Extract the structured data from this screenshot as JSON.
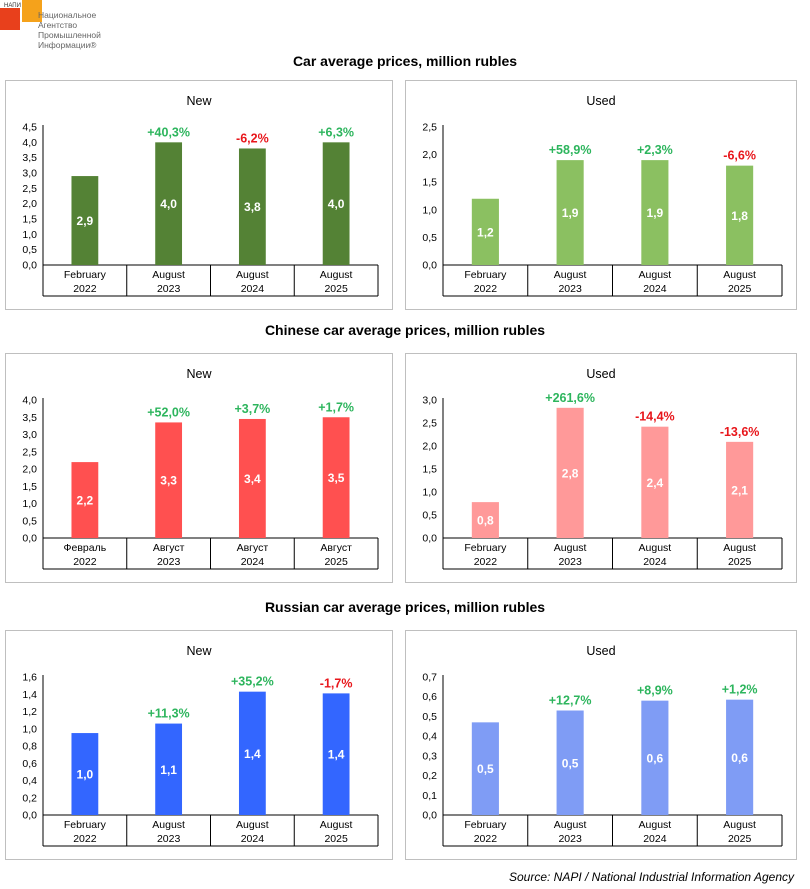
{
  "logo": {
    "abbr": "НАПИ",
    "name_lines": [
      "Национальное",
      "Агентство",
      "Промышленной",
      "Информации®"
    ]
  },
  "sections": [
    {
      "title": "Car average prices, million rubles"
    },
    {
      "title": "Chinese car average prices, million rubles"
    },
    {
      "title": "Russian car average prices, million rubles"
    }
  ],
  "source": "Source: NAPI / National Industrial Information Agency",
  "colors": {
    "positive": "#2db55d",
    "negative": "#e8161b",
    "dark_green": "#548235",
    "light_green": "#8bc061",
    "red": "#ff5050",
    "pink": "#ff9999",
    "blue": "#3366ff",
    "light_blue": "#7f9cf5"
  },
  "chart_data": [
    {
      "type": "bar",
      "title": "New",
      "categories": [
        [
          "February",
          "2022"
        ],
        [
          "August",
          "2023"
        ],
        [
          "August",
          "2024"
        ],
        [
          "August",
          "2025"
        ]
      ],
      "values": [
        2.9,
        4.0,
        3.8,
        4.0
      ],
      "labels": [
        "2,9",
        "4,0",
        "3,8",
        "4,0"
      ],
      "changes": [
        "",
        "+40,3%",
        "-6,2%",
        "+6,3%"
      ],
      "ylim": [
        0,
        4.5
      ],
      "yticks": [
        "0,0",
        "0,5",
        "1,0",
        "1,5",
        "2,0",
        "2,5",
        "3,0",
        "3,5",
        "4,0",
        "4,5"
      ],
      "color": "#548235"
    },
    {
      "type": "bar",
      "title": "Used",
      "categories": [
        [
          "February",
          "2022"
        ],
        [
          "August",
          "2023"
        ],
        [
          "August",
          "2024"
        ],
        [
          "August",
          "2025"
        ]
      ],
      "values": [
        1.2,
        1.9,
        1.9,
        1.8
      ],
      "labels": [
        "1,2",
        "1,9",
        "1,9",
        "1,8"
      ],
      "changes": [
        "",
        "+58,9%",
        "+2,3%",
        "-6,6%"
      ],
      "ylim": [
        0,
        2.5
      ],
      "yticks": [
        "0,0",
        "0,5",
        "1,0",
        "1,5",
        "2,0",
        "2,5"
      ],
      "color": "#8bc061"
    },
    {
      "type": "bar",
      "title": "New",
      "categories": [
        [
          "Февраль",
          "2022"
        ],
        [
          "Август",
          "2023"
        ],
        [
          "Август",
          "2024"
        ],
        [
          "Август",
          "2025"
        ]
      ],
      "values": [
        2.2,
        3.35,
        3.45,
        3.5
      ],
      "labels": [
        "2,2",
        "3,3",
        "3,4",
        "3,5"
      ],
      "changes": [
        "",
        "+52,0%",
        "+3,7%",
        "+1,7%"
      ],
      "ylim": [
        0,
        4.0
      ],
      "yticks": [
        "0,0",
        "0,5",
        "1,0",
        "1,5",
        "2,0",
        "2,5",
        "3,0",
        "3,5",
        "4,0"
      ],
      "color": "#ff5050"
    },
    {
      "type": "bar",
      "title": "Used",
      "categories": [
        [
          "February",
          "2022"
        ],
        [
          "August",
          "2023"
        ],
        [
          "August",
          "2024"
        ],
        [
          "August",
          "2025"
        ]
      ],
      "values": [
        0.78,
        2.83,
        2.42,
        2.09
      ],
      "labels": [
        "0,8",
        "2,8",
        "2,4",
        "2,1"
      ],
      "changes": [
        "",
        "+261,6%",
        "-14,4%",
        "-13,6%"
      ],
      "ylim": [
        0,
        3.0
      ],
      "yticks": [
        "0,0",
        "0,5",
        "1,0",
        "1,5",
        "2,0",
        "2,5",
        "3,0"
      ],
      "color": "#ff9999"
    },
    {
      "type": "bar",
      "title": "New",
      "categories": [
        [
          "February",
          "2022"
        ],
        [
          "August",
          "2023"
        ],
        [
          "August",
          "2024"
        ],
        [
          "August",
          "2025"
        ]
      ],
      "values": [
        0.95,
        1.06,
        1.43,
        1.41
      ],
      "labels": [
        "1,0",
        "1,1",
        "1,4",
        "1,4"
      ],
      "changes": [
        "",
        "+11,3%",
        "+35,2%",
        "-1,7%"
      ],
      "ylim": [
        0,
        1.6
      ],
      "yticks": [
        "0,0",
        "0,2",
        "0,4",
        "0,6",
        "0,8",
        "1,0",
        "1,2",
        "1,4",
        "1,6"
      ],
      "color": "#3366ff"
    },
    {
      "type": "bar",
      "title": "Used",
      "categories": [
        [
          "February",
          "2022"
        ],
        [
          "August",
          "2023"
        ],
        [
          "August",
          "2024"
        ],
        [
          "August",
          "2025"
        ]
      ],
      "values": [
        0.47,
        0.53,
        0.58,
        0.585
      ],
      "labels": [
        "0,5",
        "0,5",
        "0,6",
        "0,6"
      ],
      "changes": [
        "",
        "+12,7%",
        "+8,9%",
        "+1,2%"
      ],
      "ylim": [
        0,
        0.7
      ],
      "yticks": [
        "0,0",
        "0,1",
        "0,2",
        "0,3",
        "0,4",
        "0,5",
        "0,6",
        "0,7"
      ],
      "color": "#7f9cf5"
    }
  ]
}
